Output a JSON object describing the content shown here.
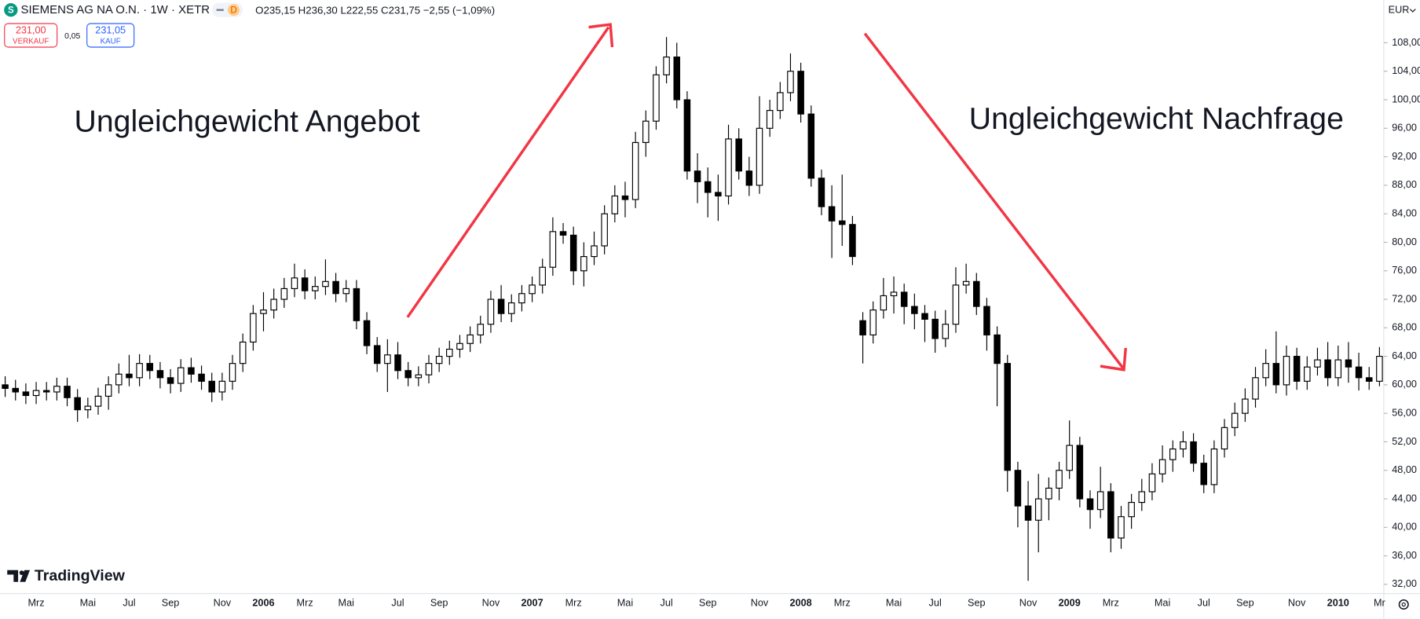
{
  "header": {
    "symbol": "SIEMENS AG NA O.N. · 1W · XETR",
    "badge": "D",
    "ohlc": [
      {
        "label": "O",
        "value": "235,15"
      },
      {
        "label": "H",
        "value": "236,30"
      },
      {
        "label": "L",
        "value": "222,55"
      },
      {
        "label": "C",
        "value": "231,75"
      }
    ],
    "change": "−2,55 (−1,09%)",
    "sell_price": "231,00",
    "sell_label": "VERKAUF",
    "spread": "0,05",
    "buy_price": "231,05",
    "buy_label": "KAUF",
    "currency": "EUR",
    "brand": "TradingView"
  },
  "chart_data": {
    "type": "candlestick",
    "annotations": [
      "Ungleichgewicht Angebot",
      "Ungleichgewicht Nachfrage"
    ],
    "categories": [
      null,
      null,
      null,
      "Mrz",
      null,
      null,
      null,
      null,
      "Mai",
      null,
      null,
      null,
      "Jul",
      null,
      null,
      null,
      "Sep",
      null,
      null,
      null,
      null,
      "Nov",
      null,
      null,
      null,
      "2006",
      null,
      null,
      null,
      "Mrz",
      null,
      null,
      null,
      "Mai",
      null,
      null,
      null,
      null,
      "Jul",
      null,
      null,
      null,
      "Sep",
      null,
      null,
      null,
      null,
      "Nov",
      null,
      null,
      null,
      "2007",
      null,
      null,
      null,
      "Mrz",
      null,
      null,
      null,
      null,
      "Mai",
      null,
      null,
      null,
      "Jul",
      null,
      null,
      null,
      "Sep",
      null,
      null,
      null,
      null,
      "Nov",
      null,
      null,
      null,
      "2008",
      null,
      null,
      null,
      "Mrz",
      null,
      null,
      null,
      null,
      "Mai",
      null,
      null,
      null,
      "Jul",
      null,
      null,
      null,
      "Sep",
      null,
      null,
      null,
      null,
      "Nov",
      null,
      null,
      null,
      "2009",
      null,
      null,
      null,
      "Mrz",
      null,
      null,
      null,
      null,
      "Mai",
      null,
      null,
      null,
      "Jul",
      null,
      null,
      null,
      "Sep",
      null,
      null,
      null,
      null,
      "Nov",
      null,
      null,
      null,
      "2010",
      null,
      null,
      null,
      "Mr"
    ],
    "open": [
      60,
      59.5,
      59,
      58.5,
      59.2,
      59,
      59.8,
      58.2,
      56.5,
      57,
      58.4,
      60,
      61.5,
      61,
      63,
      62,
      61,
      60.2,
      62.4,
      61.5,
      60.5,
      59,
      60.5,
      63,
      66,
      70,
      70.5,
      72,
      73.5,
      75,
      73.2,
      73.8,
      74.5,
      72.8,
      73.5,
      69,
      65.5,
      63,
      64.2,
      62,
      61,
      61.4,
      63,
      64,
      65,
      65.8,
      67,
      68.5,
      72,
      70,
      71.5,
      72.8,
      74,
      76.5,
      81.5,
      81,
      76,
      78,
      79.5,
      84,
      86.5,
      86,
      94,
      97,
      103.5,
      106,
      100,
      90,
      88.5,
      87,
      86.5,
      94.5,
      90,
      88,
      96,
      98.5,
      101,
      104,
      98,
      89,
      85,
      83,
      82.5,
      69,
      67,
      70.5,
      72.5,
      73,
      71,
      70,
      69.2,
      66.5,
      68.5,
      74,
      74.5,
      71,
      67,
      63,
      48,
      43,
      41,
      44,
      45.5,
      48,
      51.5,
      44,
      42.5,
      45,
      38.5,
      41.5,
      43.5,
      45,
      47.5,
      49.5,
      51,
      52,
      49,
      46,
      51,
      54,
      56,
      58,
      61,
      63,
      60,
      64,
      60.5,
      62.5,
      63.5,
      61,
      63.5,
      62.5,
      61,
      60.5
    ],
    "high": [
      61.2,
      60.7,
      60.2,
      60.4,
      60.4,
      61,
      61,
      59.4,
      58.2,
      59.6,
      61.2,
      63,
      64.2,
      64.3,
      64.2,
      63.2,
      62.2,
      63.6,
      63.8,
      62.7,
      61.7,
      61.7,
      64.2,
      67.2,
      71.2,
      73,
      73.5,
      75,
      77,
      76.2,
      75.2,
      77.6,
      75.7,
      74.7,
      74.7,
      70.2,
      66.7,
      66.4,
      66,
      63.2,
      62.6,
      64.2,
      65.2,
      66.2,
      67,
      68.2,
      69.7,
      73.2,
      74,
      72.7,
      74,
      75.2,
      77.7,
      83.5,
      82.7,
      82.2,
      80,
      81.5,
      85.2,
      88,
      88.5,
      95.5,
      98.5,
      104.7,
      108.8,
      108,
      101.2,
      92.5,
      90.5,
      89.5,
      96.5,
      96,
      92,
      100.5,
      100,
      102.5,
      106.5,
      105.2,
      99.2,
      90.2,
      88,
      89.5,
      83.7,
      70.2,
      71.7,
      75,
      75.2,
      74.2,
      72.8,
      71.2,
      70.4,
      70.5,
      76.5,
      77,
      75.7,
      72.2,
      68.2,
      64.2,
      49.2,
      46.5,
      47.5,
      47,
      49.2,
      55,
      52.7,
      45.2,
      48.5,
      46.2,
      43,
      44.7,
      46.8,
      49,
      51.5,
      52.2,
      53.5,
      53.2,
      50.2,
      52.2,
      55.2,
      57.5,
      59.5,
      62.5,
      65,
      67.5,
      65.5,
      65.2,
      64,
      65.2,
      66,
      65.5,
      66,
      64.5,
      62.5,
      65.3
    ],
    "low": [
      58.3,
      57.8,
      57.3,
      57.3,
      57.8,
      57.8,
      57,
      54.8,
      55.3,
      55.8,
      56.5,
      58.8,
      59.8,
      59.8,
      60.8,
      59.5,
      58.8,
      59,
      60.3,
      59.3,
      57.6,
      57.8,
      59.3,
      61.8,
      64.8,
      67.5,
      69.3,
      70.8,
      72.3,
      72,
      72,
      72.6,
      71.6,
      71.6,
      67.8,
      64.3,
      61.8,
      59,
      60.8,
      59.8,
      59.8,
      60.2,
      61.8,
      62.8,
      63.8,
      64.6,
      65.8,
      67.3,
      68.8,
      68.8,
      70.3,
      71.6,
      72.8,
      75.3,
      79.8,
      74,
      73.8,
      76.8,
      78.3,
      82.8,
      83.5,
      84.8,
      92,
      95.8,
      102.3,
      98.8,
      88.8,
      85.5,
      83.5,
      83,
      85.3,
      88.8,
      86.5,
      86.8,
      94.8,
      97.3,
      99.8,
      96.8,
      87.8,
      83.8,
      77.8,
      79.5,
      76.8,
      63,
      65.8,
      69.3,
      70,
      68.5,
      67.8,
      66,
      64.5,
      65.3,
      67.3,
      72.8,
      69.8,
      64.8,
      57,
      45,
      40,
      32.5,
      36.5,
      41,
      43.8,
      46.8,
      42.8,
      39.8,
      41.3,
      36.5,
      37,
      39.8,
      42.3,
      43.8,
      46.3,
      47.8,
      49.8,
      47.8,
      44.8,
      44.8,
      49.8,
      52.8,
      54.8,
      56.8,
      59.8,
      58.8,
      58.5,
      59.3,
      59.3,
      61.3,
      59.8,
      59.8,
      60.3,
      59.2,
      59.3,
      59.8
    ],
    "close": [
      59.5,
      59,
      58.5,
      59.2,
      59,
      59.8,
      58.2,
      56.5,
      57,
      58.4,
      60,
      61.5,
      61,
      63,
      62,
      61,
      60.2,
      62.4,
      61.5,
      60.5,
      59,
      60.5,
      63,
      66,
      70,
      70.5,
      72,
      73.5,
      75,
      73.2,
      73.8,
      74.5,
      72.8,
      73.5,
      69,
      65.5,
      63,
      64.2,
      62,
      61,
      61.4,
      63,
      64,
      65,
      65.8,
      67,
      68.5,
      72,
      70,
      71.5,
      72.8,
      74,
      76.5,
      81.5,
      81,
      76,
      78,
      79.5,
      84,
      86.5,
      86,
      94,
      97,
      103.5,
      106,
      100,
      90,
      88.5,
      87,
      86.5,
      94.5,
      90,
      88,
      96,
      98.5,
      101,
      104,
      98,
      89,
      85,
      83,
      82.5,
      78,
      67,
      70.5,
      72.5,
      73,
      71,
      70,
      69.2,
      66.5,
      68.5,
      74,
      74.5,
      71,
      67,
      63,
      48,
      43,
      41,
      44,
      45.5,
      48,
      51.5,
      44,
      42.5,
      45,
      38.5,
      41.5,
      43.5,
      45,
      47.5,
      49.5,
      51,
      52,
      49,
      46,
      51,
      54,
      56,
      58,
      61,
      63,
      60,
      64,
      60.5,
      62.5,
      63.5,
      61,
      63.5,
      62.5,
      61,
      60.5,
      64
    ],
    "ylim": [
      30.7,
      114
    ],
    "yticks": [
      {
        "value": 32,
        "label": "32,00"
      },
      {
        "value": 36,
        "label": "36,00"
      },
      {
        "value": 40,
        "label": "40,00"
      },
      {
        "value": 44,
        "label": "44,00"
      },
      {
        "value": 48,
        "label": "48,00"
      },
      {
        "value": 52,
        "label": "52,00"
      },
      {
        "value": 56,
        "label": "56,00"
      },
      {
        "value": 60,
        "label": "60,00"
      },
      {
        "value": 64,
        "label": "64,00"
      },
      {
        "value": 68,
        "label": "68,00"
      },
      {
        "value": 72,
        "label": "72,00"
      },
      {
        "value": 76,
        "label": "76,00"
      },
      {
        "value": 80,
        "label": "80,00"
      },
      {
        "value": 84,
        "label": "84,00"
      },
      {
        "value": 88,
        "label": "88,00"
      },
      {
        "value": 92,
        "label": "92,00"
      },
      {
        "value": 96,
        "label": "96,00"
      },
      {
        "value": 100,
        "label": "100,00"
      },
      {
        "value": 104,
        "label": "104,00"
      },
      {
        "value": 108,
        "label": "108,00"
      }
    ],
    "up_color": "#ffffff",
    "down_color": "#000000",
    "grid": false
  }
}
